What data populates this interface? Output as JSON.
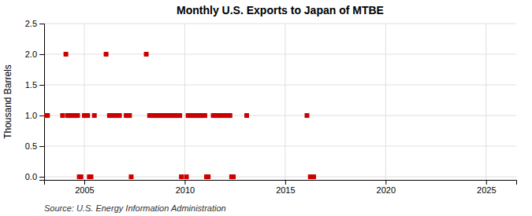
{
  "chart_data": {
    "type": "scatter",
    "title": "Monthly U.S. Exports to Japan of MTBE",
    "ylabel": "Thousand Barrels",
    "annotations": [
      "Source: U.S. Energy Information Administration"
    ],
    "color": "#cc0000",
    "marker": "square",
    "grid": true,
    "xlim": [
      2003.0,
      2026.5
    ],
    "xticks": [
      2005,
      2010,
      2015,
      2020,
      2025
    ],
    "ylim": [
      -0.05,
      2.5
    ],
    "yticks": [
      {
        "value": 0.0,
        "label": "0.0"
      },
      0.5,
      {
        "value": 1.0,
        "label": "1.0"
      },
      1.5,
      {
        "value": 2.0,
        "label": "2.0"
      },
      2.5
    ],
    "x": [
      2003.083,
      2003.167,
      2003.917,
      2004.083,
      2004.167,
      2004.25,
      2004.333,
      2004.417,
      2004.5,
      2004.583,
      2004.667,
      2004.75,
      2004.833,
      2005.0,
      2005.083,
      2005.167,
      2005.25,
      2005.333,
      2005.5,
      2006.083,
      2006.25,
      2006.333,
      2006.417,
      2006.583,
      2006.667,
      2006.75,
      2007.083,
      2007.167,
      2007.25,
      2007.333,
      2008.083,
      2008.25,
      2008.333,
      2008.417,
      2008.5,
      2008.583,
      2008.667,
      2008.75,
      2008.833,
      2008.917,
      2009.0,
      2009.083,
      2009.167,
      2009.25,
      2009.333,
      2009.417,
      2009.5,
      2009.583,
      2009.667,
      2009.75,
      2009.833,
      2010.083,
      2010.167,
      2010.25,
      2010.333,
      2010.417,
      2010.5,
      2010.583,
      2010.667,
      2010.75,
      2010.833,
      2010.917,
      2011.0,
      2011.083,
      2011.167,
      2011.417,
      2011.5,
      2011.583,
      2011.667,
      2011.75,
      2011.833,
      2011.917,
      2012.083,
      2012.167,
      2012.25,
      2012.333,
      2012.417,
      2013.083,
      2016.083,
      2016.25,
      2016.417
    ],
    "values": [
      1.0,
      1.0,
      1.0,
      2.0,
      1.0,
      1.0,
      1.0,
      1.0,
      1.0,
      1.0,
      1.0,
      0.0,
      0.0,
      1.0,
      1.0,
      1.0,
      0.0,
      0.0,
      1.0,
      2.0,
      1.0,
      1.0,
      1.0,
      1.0,
      1.0,
      1.0,
      1.0,
      1.0,
      1.0,
      0.0,
      2.0,
      1.0,
      1.0,
      1.0,
      1.0,
      1.0,
      1.0,
      1.0,
      1.0,
      1.0,
      1.0,
      1.0,
      1.0,
      1.0,
      1.0,
      1.0,
      1.0,
      1.0,
      1.0,
      1.0,
      0.0,
      0.0,
      1.0,
      1.0,
      1.0,
      1.0,
      1.0,
      1.0,
      1.0,
      1.0,
      1.0,
      1.0,
      1.0,
      0.0,
      0.0,
      1.0,
      1.0,
      1.0,
      1.0,
      1.0,
      1.0,
      1.0,
      1.0,
      1.0,
      1.0,
      0.0,
      0.0,
      1.0,
      1.0,
      0.0,
      0.0
    ]
  }
}
